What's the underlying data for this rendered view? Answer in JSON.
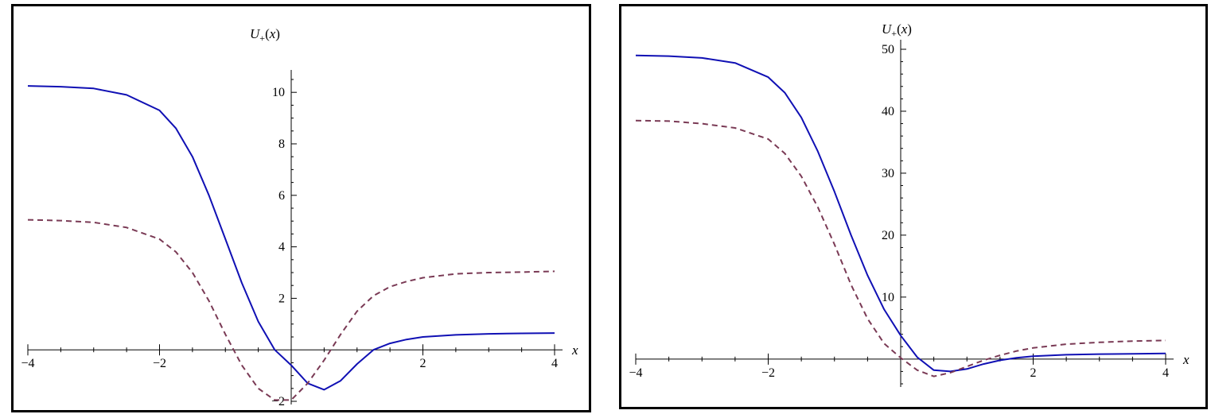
{
  "chart_data": [
    {
      "type": "line",
      "ylabel": "U+(x)",
      "ylabel_parts": {
        "base": "U",
        "sub": "+",
        "open": "(",
        "var": "x",
        "close": ")"
      },
      "xlabel": "x",
      "xlim": [
        -4,
        4
      ],
      "ylim": [
        -2,
        10.5
      ],
      "x_ticks": [
        -4,
        -2,
        0,
        2,
        4
      ],
      "x_tick_labels": [
        "−4",
        "−2",
        "",
        "2",
        "4"
      ],
      "y_ticks": [
        -2,
        2,
        4,
        6,
        8,
        10
      ],
      "y_tick_labels": [
        "−2",
        "2",
        "4",
        "6",
        "8",
        "10"
      ],
      "grid": false,
      "series": [
        {
          "style": "solid",
          "color": "#1010b4",
          "x": [
            -4,
            -3.5,
            -3,
            -2.5,
            -2,
            -1.75,
            -1.5,
            -1.25,
            -1,
            -0.75,
            -0.5,
            -0.25,
            0,
            0.25,
            0.5,
            0.75,
            1,
            1.25,
            1.5,
            1.75,
            2,
            2.5,
            3,
            3.5,
            4
          ],
          "y": [
            10.25,
            10.22,
            10.15,
            9.9,
            9.3,
            8.6,
            7.5,
            6.0,
            4.3,
            2.6,
            1.1,
            0.0,
            -0.6,
            -1.3,
            -1.55,
            -1.2,
            -0.55,
            0.0,
            0.25,
            0.4,
            0.5,
            0.58,
            0.62,
            0.64,
            0.65
          ]
        },
        {
          "style": "dashed",
          "color": "#7a3a55",
          "x": [
            -4,
            -3.5,
            -3,
            -2.5,
            -2,
            -1.75,
            -1.5,
            -1.25,
            -1,
            -0.75,
            -0.5,
            -0.25,
            0,
            0.25,
            0.5,
            0.75,
            1,
            1.25,
            1.5,
            1.75,
            2,
            2.5,
            3,
            3.5,
            4
          ],
          "y": [
            5.05,
            5.02,
            4.95,
            4.75,
            4.3,
            3.8,
            3.0,
            1.9,
            0.6,
            -0.6,
            -1.5,
            -1.95,
            -1.95,
            -1.3,
            -0.4,
            0.6,
            1.5,
            2.1,
            2.45,
            2.65,
            2.8,
            2.95,
            3.0,
            3.02,
            3.05
          ]
        }
      ]
    },
    {
      "type": "line",
      "ylabel": "U+(x)",
      "ylabel_parts": {
        "base": "U",
        "sub": "+",
        "open": "(",
        "var": "x",
        "close": ")"
      },
      "xlabel": "x",
      "xlim": [
        -4,
        4
      ],
      "ylim": [
        -4,
        50
      ],
      "x_ticks": [
        -4,
        -2,
        0,
        2,
        4
      ],
      "x_tick_labels": [
        "−4",
        "−2",
        "",
        "2",
        "4"
      ],
      "y_ticks": [
        10,
        20,
        30,
        40,
        50
      ],
      "y_tick_labels": [
        "10",
        "20",
        "30",
        "40",
        "50"
      ],
      "grid": false,
      "series": [
        {
          "style": "solid",
          "color": "#1010b4",
          "x": [
            -4,
            -3.5,
            -3,
            -2.5,
            -2,
            -1.75,
            -1.5,
            -1.25,
            -1,
            -0.75,
            -0.5,
            -0.25,
            0,
            0.25,
            0.5,
            0.75,
            1,
            1.25,
            1.5,
            1.75,
            2,
            2.5,
            3,
            3.5,
            4
          ],
          "y": [
            49.0,
            48.9,
            48.6,
            47.8,
            45.5,
            43.0,
            39.0,
            33.5,
            27.0,
            20.0,
            13.5,
            8.0,
            3.8,
            0.3,
            -1.8,
            -2.0,
            -1.6,
            -0.8,
            -0.2,
            0.2,
            0.45,
            0.7,
            0.8,
            0.85,
            0.9
          ]
        },
        {
          "style": "dashed",
          "color": "#7a3a55",
          "x": [
            -4,
            -3.5,
            -3,
            -2.5,
            -2,
            -1.75,
            -1.5,
            -1.25,
            -1,
            -0.75,
            -0.5,
            -0.25,
            0,
            0.25,
            0.5,
            0.75,
            1,
            1.25,
            1.5,
            1.75,
            2,
            2.5,
            3,
            3.5,
            4
          ],
          "y": [
            38.5,
            38.4,
            38.0,
            37.3,
            35.5,
            33.2,
            29.5,
            24.5,
            18.5,
            12.0,
            6.5,
            2.5,
            0.2,
            -1.8,
            -2.8,
            -2.2,
            -1.2,
            -0.2,
            0.6,
            1.3,
            1.8,
            2.4,
            2.7,
            2.9,
            3.0
          ]
        }
      ]
    }
  ]
}
